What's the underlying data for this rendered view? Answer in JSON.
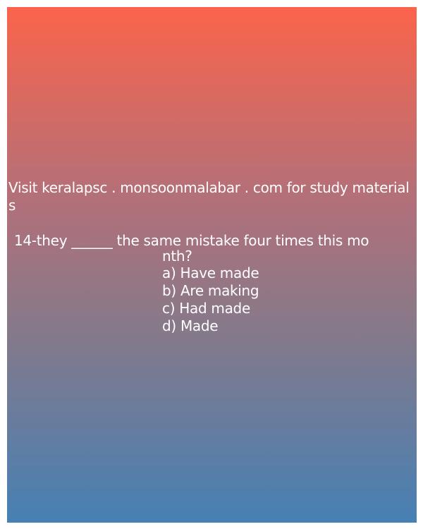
{
  "promo": {
    "text": "Visit keralapsc . monsoonmalabar . com for study materials"
  },
  "question": {
    "line1": "14-they ______ the same mistake four times this mo",
    "line2": "nth?"
  },
  "options": [
    "a) Have made",
    "b) Are making",
    "c) Had made",
    "d) Made"
  ],
  "colors": {
    "gradient_top": "#fb644b",
    "gradient_bottom": "#4680b4",
    "text": "#ffffff"
  }
}
